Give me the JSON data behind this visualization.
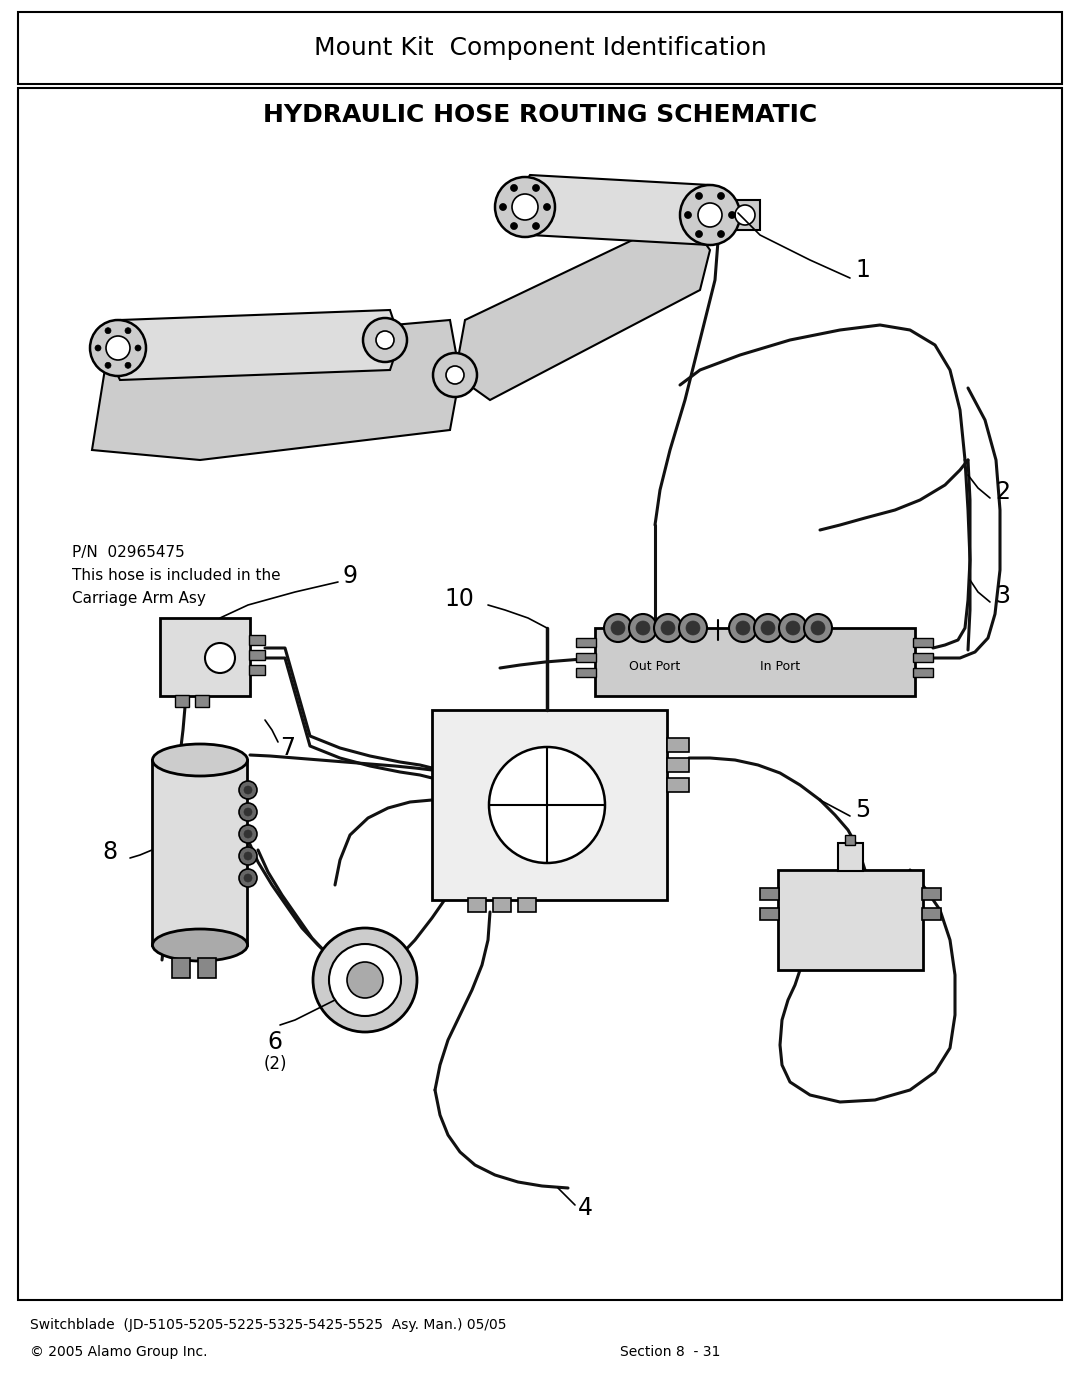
{
  "title_box_text": "Mount Kit  Component Identification",
  "main_title": "HYDRAULIC HOSE ROUTING SCHEMATIC",
  "pn_line1": "P/N  02965475",
  "pn_line2": "This hose is included in the",
  "pn_line3": "Carriage Arm Asy",
  "footer_left": "Switchblade  (JD-5105-5205-5225-5325-5425-5525  Asy. Man.) 05/05",
  "footer_copyright": "© 2005 Alamo Group Inc.",
  "footer_section": "Section 8  - 31",
  "out_port": "Out Port",
  "in_port": "In Port",
  "bg": "#ffffff",
  "bk": "#000000",
  "lc": "#111111",
  "gray1": "#cccccc",
  "gray2": "#aaaaaa",
  "gray3": "#888888",
  "gray4": "#dddddd",
  "gray5": "#666666"
}
